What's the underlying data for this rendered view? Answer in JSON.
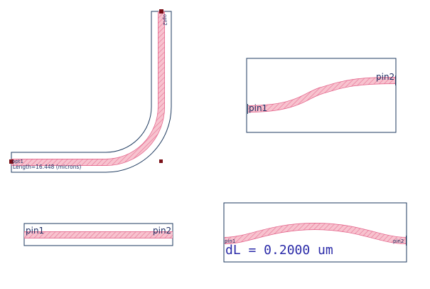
{
  "colors": {
    "background": "#ffffff",
    "boundary": "#1e3a5f",
    "waveguide_fill": "#f7c3cf",
    "waveguide_stroke": "#e35d86",
    "hatch": "#e97a9b",
    "marker": "#7a1018",
    "label": "#1e2f64",
    "dl_text": "#2a2aa8"
  },
  "components": {
    "bend": {
      "pin_top": "opt2",
      "pin_left": "opt1",
      "length_label": "Length=16.448 (microns)"
    },
    "s_bend": {
      "pin_left": "pin1",
      "pin_right": "pin2"
    },
    "straight": {
      "pin_left": "pin1",
      "pin_right": "pin2"
    },
    "delta_bend": {
      "pin_left": "pin1",
      "pin_right": "pin2",
      "dl_label": "dL = 0.2000 um"
    }
  }
}
